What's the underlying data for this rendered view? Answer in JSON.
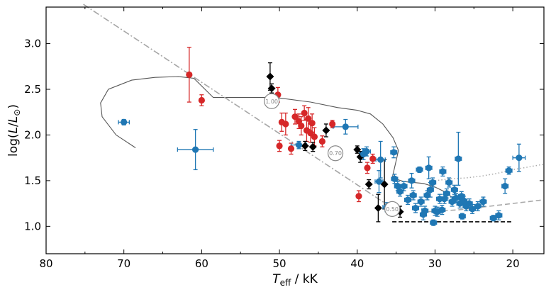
{
  "chart_data": {
    "type": "scatter",
    "xlabel": "T_eff / kK",
    "ylabel": "log(L/L_sun)",
    "xlabel_parts": {
      "main": "T",
      "sub": "eff",
      "unit": " / kK"
    },
    "ylabel_parts": {
      "pre": "log(",
      "L1": "L",
      "slash": "/",
      "L2": "L",
      "sun": "⊙",
      "post": ")"
    },
    "xlim": [
      80,
      16
    ],
    "ylim": [
      0.7,
      3.4
    ],
    "x_ticks": [
      80,
      70,
      60,
      50,
      40,
      30,
      20
    ],
    "x_tick_labels": [
      "80",
      "70",
      "60",
      "50",
      "40",
      "30",
      "20"
    ],
    "x_minor_ticks": [
      75,
      65,
      55,
      45,
      35,
      25
    ],
    "y_ticks": [
      1.0,
      1.5,
      2.0,
      2.5,
      3.0
    ],
    "y_tick_labels": [
      "1.0",
      "1.5",
      "2.0",
      "2.5",
      "3.0"
    ],
    "colors": {
      "red": "#d62728",
      "black": "#000000",
      "blue": "#1f77b4",
      "track": "#555555",
      "dashdot": "#a6a6a6",
      "dotted": "#aaaaaa",
      "dashed": "#aaaaaa",
      "hline": "#000000"
    },
    "mass_markers": [
      {
        "x": 51.0,
        "y": 2.37,
        "label": "1.00"
      },
      {
        "x": 42.8,
        "y": 1.8,
        "label": "0.70"
      },
      {
        "x": 35.5,
        "y": 1.19,
        "label": "0.50"
      }
    ],
    "dashdot_line": [
      [
        75.2,
        3.43
      ],
      [
        35.3,
        1.19
      ]
    ],
    "track": [
      [
        68.5,
        1.86
      ],
      [
        71.0,
        2.0
      ],
      [
        72.8,
        2.2
      ],
      [
        73.0,
        2.35
      ],
      [
        72.0,
        2.5
      ],
      [
        69.0,
        2.6
      ],
      [
        66.0,
        2.63
      ],
      [
        63.0,
        2.64
      ],
      [
        61.0,
        2.62
      ],
      [
        58.5,
        2.41
      ],
      [
        50.5,
        2.41
      ],
      [
        46.0,
        2.36
      ],
      [
        42.5,
        2.3
      ],
      [
        40.0,
        2.27
      ],
      [
        38.3,
        2.23
      ],
      [
        36.7,
        2.12
      ],
      [
        35.4,
        1.97
      ],
      [
        34.7,
        1.83
      ],
      [
        35.5,
        1.53
      ],
      [
        34.0,
        1.49
      ],
      [
        31.5,
        1.47
      ],
      [
        30.0,
        1.43
      ],
      [
        28.8,
        1.38
      ],
      [
        28.0,
        1.33
      ],
      [
        27.4,
        1.3
      ]
    ],
    "dotted_line": [
      [
        30.0,
        1.5
      ],
      [
        28.0,
        1.52
      ],
      [
        26.0,
        1.53
      ],
      [
        24.0,
        1.55
      ],
      [
        22.0,
        1.58
      ],
      [
        20.0,
        1.62
      ],
      [
        18.0,
        1.65
      ],
      [
        16.0,
        1.68
      ]
    ],
    "dashed_curve": [
      [
        31.0,
        1.16
      ],
      [
        29.0,
        1.17
      ],
      [
        27.0,
        1.18
      ],
      [
        25.0,
        1.2
      ],
      [
        23.0,
        1.22
      ],
      [
        21.0,
        1.24
      ],
      [
        19.0,
        1.26
      ],
      [
        17.0,
        1.28
      ],
      [
        16.0,
        1.29
      ]
    ],
    "hline": {
      "y": 1.05,
      "x0": 35.5,
      "x1": 20.2
    },
    "series": [
      {
        "name": "red",
        "marker": "circle",
        "points": [
          {
            "x": 61.6,
            "y": 2.66,
            "ey": 0.3
          },
          {
            "x": 60.0,
            "y": 2.38,
            "ey": 0.06
          },
          {
            "x": 50.2,
            "y": 2.44,
            "ey": 0.08
          },
          {
            "x": 49.7,
            "y": 2.14,
            "ey": 0.1
          },
          {
            "x": 49.2,
            "y": 2.12,
            "ey": 0.12
          },
          {
            "x": 48.0,
            "y": 2.2,
            "ey": 0.08
          },
          {
            "x": 47.5,
            "y": 2.15,
            "ey": 0.08
          },
          {
            "x": 47.2,
            "y": 2.1,
            "ey": 0.1
          },
          {
            "x": 46.8,
            "y": 2.24,
            "ey": 0.08
          },
          {
            "x": 46.5,
            "y": 2.05,
            "ey": 0.12
          },
          {
            "x": 46.3,
            "y": 2.18,
            "ey": 0.12
          },
          {
            "x": 46.0,
            "y": 2.02,
            "ey": 0.1
          },
          {
            "x": 45.8,
            "y": 2.13,
            "ey": 0.1
          },
          {
            "x": 45.5,
            "y": 1.98,
            "ey": 0.1
          },
          {
            "x": 50.0,
            "y": 1.88,
            "ey": 0.06
          },
          {
            "x": 48.5,
            "y": 1.85,
            "ey": 0.06
          },
          {
            "x": 44.5,
            "y": 1.93,
            "ey": 0.06
          },
          {
            "x": 43.2,
            "y": 2.12,
            "ey": 0.04
          },
          {
            "x": 39.8,
            "y": 1.33,
            "ey": 0.06
          },
          {
            "x": 38.7,
            "y": 1.64,
            "ey": 0.06
          },
          {
            "x": 38.0,
            "y": 1.74,
            "ey": 0.05
          }
        ]
      },
      {
        "name": "black",
        "marker": "diamond",
        "points": [
          {
            "x": 51.2,
            "y": 2.64,
            "ey": 0.15
          },
          {
            "x": 51.0,
            "y": 2.51,
            "ey": 0.05
          },
          {
            "x": 46.7,
            "y": 1.88,
            "ey": 0.05
          },
          {
            "x": 45.7,
            "y": 1.87,
            "ey": 0.05
          },
          {
            "x": 44.0,
            "y": 2.05,
            "ey": 0.07
          },
          {
            "x": 40.0,
            "y": 1.84,
            "ey": 0.04
          },
          {
            "x": 39.6,
            "y": 1.76,
            "ey": 0.06
          },
          {
            "x": 38.5,
            "y": 1.46,
            "ey": 0.05
          },
          {
            "x": 37.3,
            "y": 1.2,
            "ey": 0.15
          },
          {
            "x": 36.5,
            "y": 1.46,
            "ey": 0.27
          },
          {
            "x": 34.5,
            "y": 1.16,
            "ey": 0.06
          }
        ]
      },
      {
        "name": "blue",
        "marker": "circle",
        "points": [
          {
            "x": 70.0,
            "y": 2.14,
            "ex": 0.7,
            "ey": 0.03
          },
          {
            "x": 60.8,
            "y": 1.84,
            "ex": 2.3,
            "ey": 0.22
          },
          {
            "x": 47.5,
            "y": 1.89,
            "ex": 1.0,
            "ey": 0.04
          },
          {
            "x": 41.5,
            "y": 2.09,
            "ex": 1.6,
            "ey": 0.08
          },
          {
            "x": 39.2,
            "y": 1.79,
            "ex": 0.5,
            "ey": 0.06
          },
          {
            "x": 38.8,
            "y": 1.82,
            "ex": 0.5,
            "ey": 0.05
          },
          {
            "x": 37.0,
            "y": 1.73,
            "ex": 0.6,
            "ey": 0.2
          },
          {
            "x": 37.2,
            "y": 1.49,
            "ex": 0.5,
            "ey": 0.12
          },
          {
            "x": 36.2,
            "y": 1.21,
            "ex": 0.5,
            "ey": 0.05
          },
          {
            "x": 35.3,
            "y": 1.81,
            "ex": 0.4,
            "ey": 0.06
          },
          {
            "x": 35.2,
            "y": 1.52,
            "ex": 0.4,
            "ey": 0.05
          },
          {
            "x": 34.8,
            "y": 1.44,
            "ex": 0.4,
            "ey": 0.05
          },
          {
            "x": 34.5,
            "y": 1.38,
            "ex": 0.4,
            "ey": 0.05
          },
          {
            "x": 34.0,
            "y": 1.44,
            "ex": 0.4,
            "ey": 0.05
          },
          {
            "x": 33.5,
            "y": 1.29,
            "ex": 0.4,
            "ey": 0.05
          },
          {
            "x": 33.0,
            "y": 1.5,
            "ex": 0.4,
            "ey": 0.08
          },
          {
            "x": 32.8,
            "y": 1.34,
            "ex": 0.4,
            "ey": 0.05
          },
          {
            "x": 32.5,
            "y": 1.2,
            "ex": 0.4,
            "ey": 0.05
          },
          {
            "x": 32.0,
            "y": 1.62,
            "ex": 0.4,
            "ey": 0.03
          },
          {
            "x": 31.8,
            "y": 1.27,
            "ex": 0.4,
            "ey": 0.05
          },
          {
            "x": 31.5,
            "y": 1.13,
            "ex": 0.4,
            "ey": 0.06
          },
          {
            "x": 31.3,
            "y": 1.17,
            "ex": 0.4,
            "ey": 0.05
          },
          {
            "x": 31.0,
            "y": 1.34,
            "ex": 0.4,
            "ey": 0.05
          },
          {
            "x": 30.8,
            "y": 1.64,
            "ex": 0.4,
            "ey": 0.12
          },
          {
            "x": 30.6,
            "y": 1.4,
            "ex": 0.4,
            "ey": 0.08
          },
          {
            "x": 30.3,
            "y": 1.48,
            "ex": 0.4,
            "ey": 0.05
          },
          {
            "x": 30.2,
            "y": 1.04,
            "ex": 0.4,
            "ey": 0.03
          },
          {
            "x": 30.0,
            "y": 1.17,
            "ex": 0.4,
            "ey": 0.05
          },
          {
            "x": 29.7,
            "y": 1.16,
            "ex": 0.4,
            "ey": 0.05
          },
          {
            "x": 29.4,
            "y": 1.3,
            "ex": 0.4,
            "ey": 0.05
          },
          {
            "x": 29.1,
            "y": 1.18,
            "ex": 0.4,
            "ey": 0.05
          },
          {
            "x": 29.0,
            "y": 1.6,
            "ex": 0.4,
            "ey": 0.05
          },
          {
            "x": 28.8,
            "y": 1.3,
            "ex": 0.4,
            "ey": 0.05
          },
          {
            "x": 28.5,
            "y": 1.36,
            "ex": 0.4,
            "ey": 0.05
          },
          {
            "x": 28.2,
            "y": 1.48,
            "ex": 0.4,
            "ey": 0.05
          },
          {
            "x": 27.8,
            "y": 1.27,
            "ex": 0.4,
            "ey": 0.05
          },
          {
            "x": 27.5,
            "y": 1.4,
            "ex": 0.4,
            "ey": 0.05
          },
          {
            "x": 27.3,
            "y": 1.31,
            "ex": 0.4,
            "ey": 0.05
          },
          {
            "x": 27.0,
            "y": 1.74,
            "ex": 0.4,
            "ey": 0.29
          },
          {
            "x": 26.8,
            "y": 1.25,
            "ex": 0.4,
            "ey": 0.05
          },
          {
            "x": 26.6,
            "y": 1.33,
            "ex": 0.4,
            "ey": 0.05
          },
          {
            "x": 26.5,
            "y": 1.11,
            "ex": 0.4,
            "ey": 0.03
          },
          {
            "x": 26.3,
            "y": 1.28,
            "ex": 0.4,
            "ey": 0.05
          },
          {
            "x": 26.0,
            "y": 1.22,
            "ex": 0.4,
            "ey": 0.05
          },
          {
            "x": 25.6,
            "y": 1.25,
            "ex": 0.4,
            "ey": 0.05
          },
          {
            "x": 25.2,
            "y": 1.19,
            "ex": 0.4,
            "ey": 0.05
          },
          {
            "x": 24.5,
            "y": 1.22,
            "ex": 0.4,
            "ey": 0.05
          },
          {
            "x": 23.8,
            "y": 1.27,
            "ex": 0.4,
            "ey": 0.05
          },
          {
            "x": 22.5,
            "y": 1.09,
            "ex": 0.4,
            "ey": 0.03
          },
          {
            "x": 21.8,
            "y": 1.12,
            "ex": 0.4,
            "ey": 0.05
          },
          {
            "x": 21.0,
            "y": 1.44,
            "ex": 0.4,
            "ey": 0.08
          },
          {
            "x": 20.5,
            "y": 1.61,
            "ex": 0.4,
            "ey": 0.04
          },
          {
            "x": 19.2,
            "y": 1.75,
            "ex": 0.8,
            "ey": 0.15
          }
        ]
      }
    ]
  }
}
